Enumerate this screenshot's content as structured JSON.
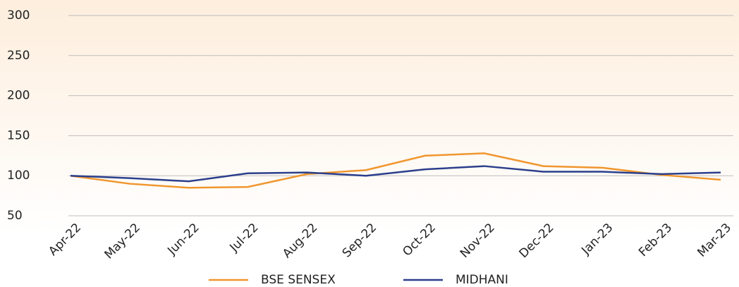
{
  "chart_data": {
    "type": "line",
    "categories": [
      "Apr-22",
      "May-22",
      "Jun-22",
      "Jul-22",
      "Aug-22",
      "Sep-22",
      "Oct-22",
      "Nov-22",
      "Dec-22",
      "Jan-23",
      "Feb-23",
      "Mar-23"
    ],
    "series": [
      {
        "name": "BSE SENSEX",
        "color": "#f0962e",
        "values": [
          100,
          90,
          85,
          86,
          102,
          107,
          125,
          128,
          112,
          110,
          101,
          95
        ]
      },
      {
        "name": "MIDHANI",
        "color": "#2b3f8c",
        "values": [
          100,
          97,
          93,
          103,
          104,
          100,
          108,
          112,
          105,
          105,
          102,
          104
        ]
      }
    ],
    "ylim": [
      50,
      300
    ],
    "yticks": [
      50,
      100,
      150,
      200,
      250,
      300
    ],
    "grid": true,
    "legend": "bottom"
  }
}
